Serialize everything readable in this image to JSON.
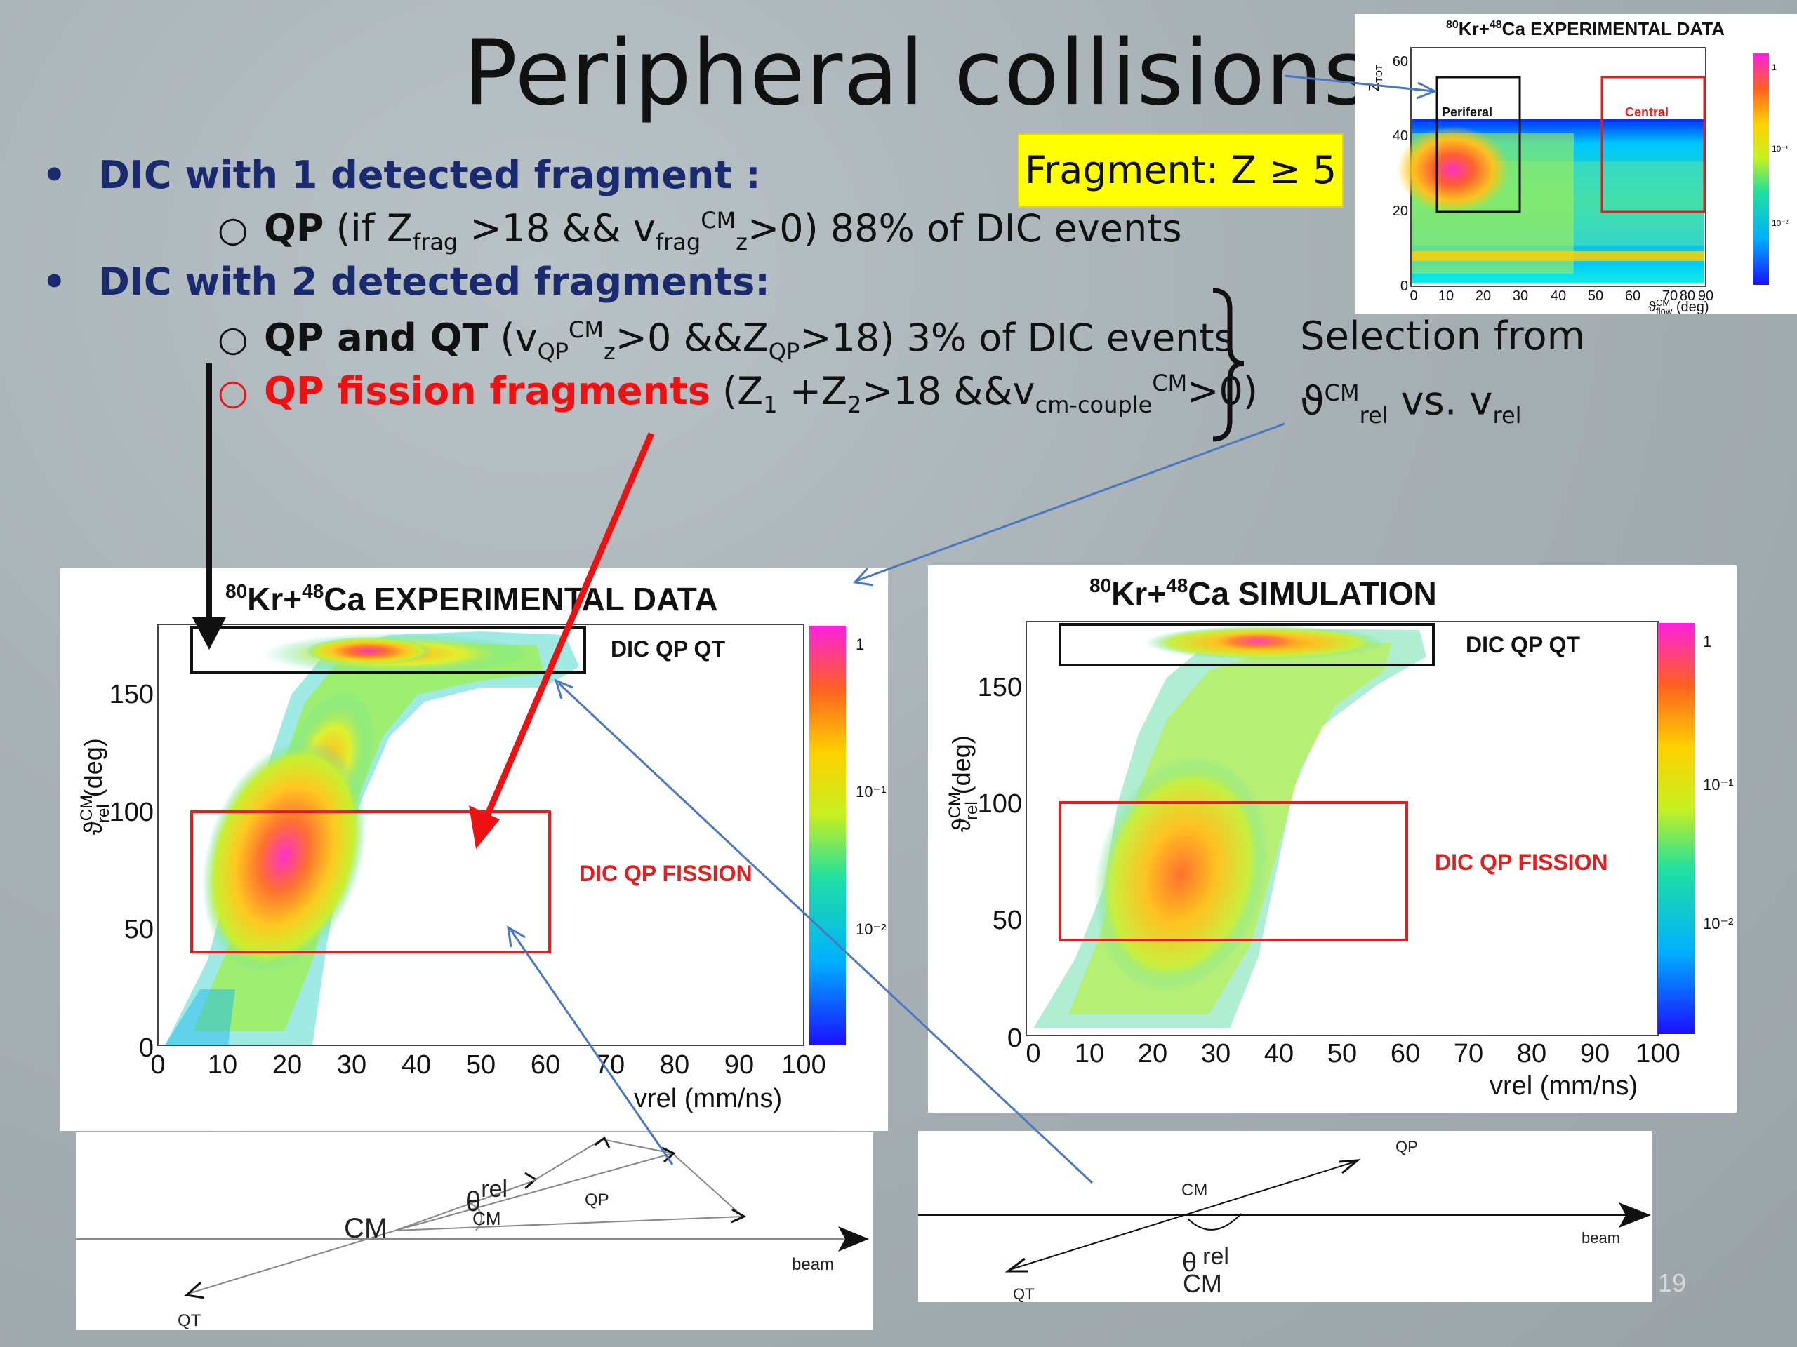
{
  "slide": {
    "title": "Peripheral collisions",
    "page_number": "19"
  },
  "bullets": {
    "b1": "DIC with 1 detected fragment :",
    "b1_sub": {
      "label": "QP",
      "rest": " (if Z",
      "sub1": "frag",
      "mid1": " >18 && v",
      "sub2": "frag",
      "sup2": "CM",
      "sub3": "z",
      "end": ">0) 88% of DIC events"
    },
    "b2": "DIC with 2 detected fragments:",
    "b2_sub1": {
      "label": "QP and QT",
      "rest": " (v",
      "sub1": "QP",
      "sup1": "CM",
      "sub2": "z",
      "mid": ">0 &&Z",
      "sub3": "QP",
      "end": ">18) 3% of DIC events"
    },
    "b2_sub2": {
      "label": "QP fission fragments",
      "rest": " (Z",
      "sub1": "1",
      "mid1": " +Z",
      "sub2": "2",
      "mid2": ">18 &&v",
      "sub3": "cm-couple",
      "sup3": "CM",
      "end": ">0)"
    }
  },
  "fragment_box": "Fragment: Z ≥ 5",
  "selection": {
    "line1": "Selection from",
    "theta": "ϑ",
    "sup": "CM",
    "sub": "rel",
    "vs": " vs. v",
    "sub2": "rel"
  },
  "inset_plot": {
    "title_pre1": "80",
    "title_kr": "Kr+",
    "title_pre2": "48",
    "title_ca": "Ca EXPERIMENTAL DATA",
    "ylabel": "Z",
    "ylabel_sub": "TOT",
    "xlabel": "ϑ",
    "xlabel_sup": "CM",
    "xlabel_sub": "flow",
    "xlabel_unit": " (deg)",
    "box_peripheral": "Periferal",
    "box_central": "Central",
    "colors": {
      "peripheral": "#111111",
      "central": "#e02020"
    }
  },
  "plot_exp": {
    "title_pre1": "80",
    "title_kr": "Kr+",
    "title_pre2": "48",
    "title_ca": "Ca EXPERIMENTAL DATA",
    "ylabel": "ϑ",
    "ylabel_sup": "CM",
    "ylabel_sub": "rel",
    "ylabel_unit": " (deg)",
    "xlabel": "vrel (mm/ns)",
    "box_top": "DIC QP QT",
    "box_mid": "DIC QP FISSION"
  },
  "plot_sim": {
    "title_pre1": "80",
    "title_kr": "Kr+",
    "title_pre2": "48",
    "title_ca": "Ca SIMULATION",
    "ylabel": "ϑ",
    "ylabel_sup": "CM",
    "ylabel_sub": "rel",
    "ylabel_unit": " (deg)",
    "xlabel": "vrel (mm/ns)",
    "box_top": "DIC QP QT",
    "box_mid": "DIC QP FISSION"
  },
  "diagram_left": {
    "cm": "CM",
    "theta": "θ",
    "theta_sup": "rel",
    "theta_sub": "CM",
    "qp": "QP",
    "qt": "QT",
    "beam": "beam"
  },
  "diagram_right": {
    "cm": "CM",
    "theta": "θ",
    "theta_sup": "rel",
    "theta_sub": "CM",
    "qp": "QP",
    "qt": "QT",
    "beam": "beam"
  },
  "chart_data": [
    {
      "type": "heatmap",
      "title": "80Kr+48Ca EXPERIMENTAL DATA",
      "xlabel": "ϑflowCM (deg)",
      "ylabel": "ZTOT",
      "xlim": [
        0,
        90
      ],
      "ylim": [
        0,
        60
      ],
      "x_ticks": [
        0,
        10,
        20,
        30,
        40,
        50,
        60,
        70,
        80,
        90
      ],
      "y_ticks": [
        0,
        20,
        40,
        60
      ],
      "color_ticks": [
        "1",
        "10⁻¹",
        "10⁻²"
      ],
      "regions": [
        {
          "name": "Periferal",
          "x": [
            10,
            30
          ],
          "y": [
            20,
            56
          ]
        },
        {
          "name": "Central",
          "x": [
            50,
            90
          ],
          "y": [
            20,
            56
          ]
        }
      ]
    },
    {
      "type": "heatmap",
      "title": "80Kr+48Ca EXPERIMENTAL DATA",
      "xlabel": "vrel (mm/ns)",
      "ylabel": "ϑrelCM (deg)",
      "xlim": [
        0,
        100
      ],
      "ylim": [
        0,
        180
      ],
      "x_ticks": [
        0,
        10,
        20,
        30,
        40,
        50,
        60,
        70,
        80,
        90,
        100
      ],
      "y_ticks": [
        0,
        50,
        100,
        150
      ],
      "color_ticks": [
        "1",
        "10⁻¹",
        "10⁻²"
      ],
      "regions": [
        {
          "name": "DIC QP QT",
          "x": [
            5,
            65
          ],
          "y": [
            160,
            180
          ]
        },
        {
          "name": "DIC QP FISSION",
          "x": [
            5,
            60
          ],
          "y": [
            40,
            100
          ]
        }
      ]
    },
    {
      "type": "heatmap",
      "title": "80Kr+48Ca SIMULATION",
      "xlabel": "vrel (mm/ns)",
      "ylabel": "ϑrelCM (deg)",
      "xlim": [
        0,
        100
      ],
      "ylim": [
        0,
        180
      ],
      "x_ticks": [
        0,
        10,
        20,
        30,
        40,
        50,
        60,
        70,
        80,
        90,
        100
      ],
      "y_ticks": [
        0,
        50,
        100,
        150
      ],
      "color_ticks": [
        "1",
        "10⁻¹",
        "10⁻²"
      ],
      "regions": [
        {
          "name": "DIC QP QT",
          "x": [
            5,
            65
          ],
          "y": [
            160,
            180
          ]
        },
        {
          "name": "DIC QP FISSION",
          "x": [
            5,
            60
          ],
          "y": [
            40,
            100
          ]
        }
      ]
    }
  ]
}
